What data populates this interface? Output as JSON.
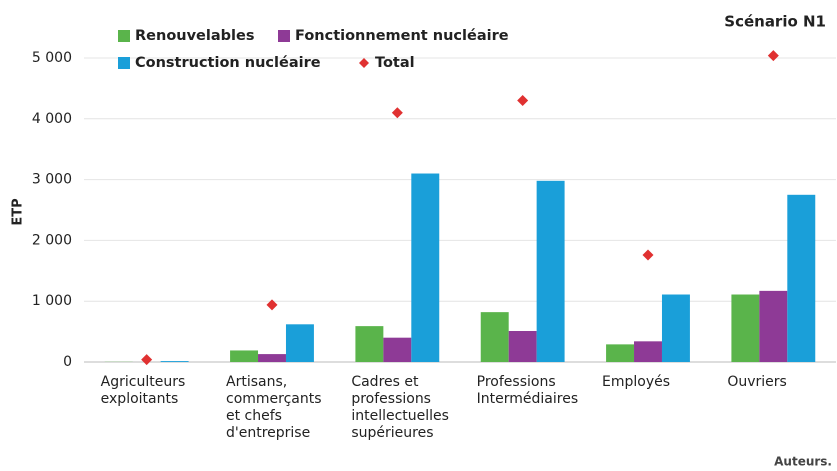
{
  "chart_data": {
    "type": "bar",
    "title": "Scénario N1",
    "y_label": "ETP",
    "source": "Auteurs.",
    "categories": [
      "Agriculteurs\nexploitants",
      "Artisans,\ncommerçants\net chefs\nd'entreprise",
      "Cadres et\nprofessions\nintellectuelles\nsupérieures",
      "Professions\nIntermédiaires",
      "Employés",
      "Ouvriers"
    ],
    "series": [
      {
        "name": "Renouvelables",
        "color": "#5ab44b",
        "values": [
          3,
          190,
          590,
          820,
          290,
          1110
        ]
      },
      {
        "name": "Fonctionnement nucléaire",
        "color": "#8e3a96",
        "values": [
          0,
          130,
          400,
          510,
          340,
          1170
        ]
      },
      {
        "name": "Construction nucléaire",
        "color": "#1a9fd9",
        "values": [
          15,
          620,
          3100,
          2980,
          1110,
          2750
        ]
      },
      {
        "name": "Total",
        "color": "#e03131",
        "marker": "diamond",
        "values": [
          40,
          940,
          4100,
          4300,
          1760,
          5040
        ]
      }
    ],
    "ylim": [
      0,
      5000
    ],
    "yticks": [
      0,
      {
        "value": 1000,
        "label": "1 000"
      },
      {
        "value": 2000,
        "label": "2 000"
      },
      {
        "value": 3000,
        "label": "3 000"
      },
      {
        "value": 4000,
        "label": "4 000"
      },
      {
        "value": 5000,
        "label": "5 000"
      }
    ],
    "grid": true
  }
}
